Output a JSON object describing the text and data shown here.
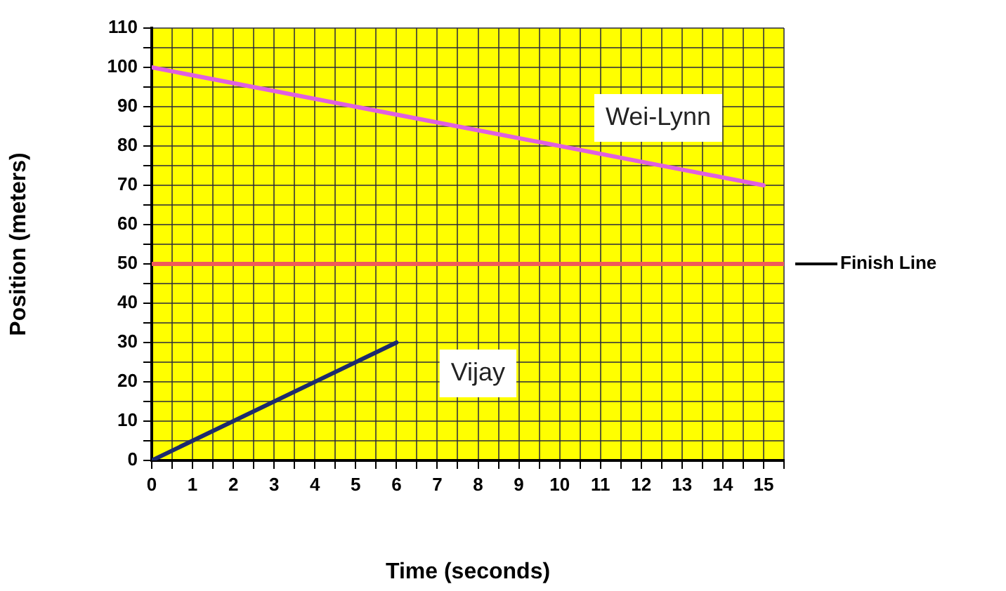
{
  "chart_data": {
    "type": "line",
    "xlabel": "Time (seconds)",
    "ylabel": "Position (meters)",
    "xlim": [
      0,
      15.5
    ],
    "ylim": [
      0,
      110
    ],
    "xticks": [
      0,
      {
        "value": 0.5,
        "label": null
      },
      1,
      {
        "value": 1.5,
        "label": null
      },
      2,
      {
        "value": 2.5,
        "label": null
      },
      3,
      {
        "value": 3.5,
        "label": null
      },
      4,
      {
        "value": 4.5,
        "label": null
      },
      5,
      {
        "value": 5.5,
        "label": null
      },
      6,
      {
        "value": 6.5,
        "label": null
      },
      7,
      {
        "value": 7.5,
        "label": null
      },
      8,
      {
        "value": 8.5,
        "label": null
      },
      9,
      {
        "value": 9.5,
        "label": null
      },
      10,
      {
        "value": 10.5,
        "label": null
      },
      11,
      {
        "value": 11.5,
        "label": null
      },
      12,
      {
        "value": 12.5,
        "label": null
      },
      13,
      {
        "value": 13.5,
        "label": null
      },
      14,
      {
        "value": 14.5,
        "label": null
      },
      15,
      {
        "value": 15.5,
        "label": null
      }
    ],
    "yticks": [
      0,
      {
        "value": 5,
        "label": null
      },
      10,
      {
        "value": 15,
        "label": null
      },
      20,
      {
        "value": 25,
        "label": null
      },
      30,
      {
        "value": 35,
        "label": null
      },
      40,
      {
        "value": 45,
        "label": null
      },
      50,
      {
        "value": 55,
        "label": null
      },
      60,
      {
        "value": 65,
        "label": null
      },
      70,
      {
        "value": 75,
        "label": null
      },
      80,
      {
        "value": 85,
        "label": null
      },
      90,
      {
        "value": 95,
        "label": null
      },
      100,
      {
        "value": 105,
        "label": null
      },
      110
    ],
    "grid": true,
    "legend": false,
    "marker": "none",
    "line_style": "solid",
    "series": [
      {
        "name": "Wei-Lynn",
        "color": "#e060e0",
        "x": [
          0,
          15
        ],
        "values": [
          100,
          70
        ]
      },
      {
        "name": "Vijay",
        "color": "#1c2a6e",
        "x": [
          0,
          6
        ],
        "values": [
          0,
          30
        ]
      }
    ],
    "ref_lines": [
      {
        "axis": "y",
        "value": 50,
        "label": "Finish Line",
        "color": "#f05a5a"
      }
    ]
  }
}
